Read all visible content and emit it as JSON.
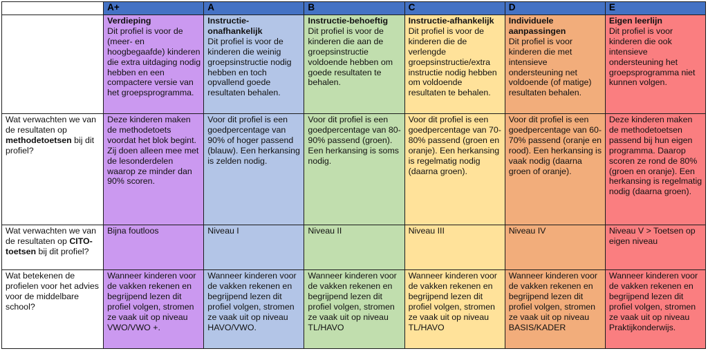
{
  "header": {
    "color": "#4472C4",
    "corner": ""
  },
  "row_labels": {
    "methodetoetsen": {
      "pre": "Wat verwachten we van de resultaten op ",
      "bold": "methodetoetsen",
      "post": " bij dit profiel?"
    },
    "cito": {
      "pre": "Wat verwachten we van de resultaten op ",
      "bold": "CITO-toetsen",
      "post": " bij dit profiel?"
    },
    "advies": {
      "pre": "Wat betekenen de profielen voor het advies voor de middelbare school?",
      "bold": "",
      "post": ""
    }
  },
  "columns": [
    {
      "label": "A+",
      "color": "#CB99F0",
      "profile_title": "Verdieping",
      "profile_text": "Dit profiel is voor de (meer- en hoogbegaafde) kinderen die extra uitdaging nodig hebben en een compactere versie van het groepsprogramma.",
      "methodetoetsen": "Deze kinderen maken de methodetoets voordat het blok begint. Zij doen alleen mee met de lesonderdelen waarop ze minder dan 90% scoren.",
      "cito": "Bijna foutloos",
      "advies": "Wanneer kinderen voor de vakken rekenen en begrijpend lezen dit profiel volgen, stromen ze vaak uit op niveau VWO/VWO +."
    },
    {
      "label": "A",
      "color": "#B3C5E7",
      "profile_title": "Instructie-onafhankelijk",
      "profile_text": "Dit profiel is voor de kinderen die weinig groepsinstructie nodig hebben en toch opvallend goede resultaten behalen.",
      "methodetoetsen": "Voor dit profiel is een goedpercentage van 90% of hoger passend (blauw). Een herkansing is zelden nodig.",
      "cito": "Niveau I",
      "advies": "Wanneer kinderen voor de vakken rekenen en begrijpend lezen dit profiel volgen, stromen ze vaak uit op niveau HAVO/VWO."
    },
    {
      "label": "B",
      "color": "#C1DEAE",
      "profile_title": "Instructie-behoeftig",
      "profile_text": "Dit profiel is voor de kinderen die aan de groepsinstructie voldoende hebben om goede resultaten te behalen.",
      "methodetoetsen": "Voor dit profiel is een goedpercentage van 80-90% passend (groen). Een herkansing is soms nodig.",
      "cito": "Niveau II",
      "advies": "Wanneer kinderen voor de vakken rekenen en begrijpend lezen dit profiel volgen, stromen ze vaak uit op niveau TL/HAVO"
    },
    {
      "label": "C",
      "color": "#FFE29A",
      "profile_title": "Instructie-afhankelijk",
      "profile_text": "Dit profiel is voor de kinderen die de verlengde groepsinstructie/extra instructie nodig hebben om voldoende resultaten te behalen.",
      "methodetoetsen": "Voor dit profiel is een goedpercentage van 70-80% passend (groen en oranje). Een herkansing is regelmatig nodig (daarna groen).",
      "cito": "Niveau III",
      "advies": "Wanneer kinderen voor de vakken rekenen en begrijpend lezen dit profiel volgen, stromen ze vaak uit op niveau TL/HAVO"
    },
    {
      "label": "D",
      "color": "#F2AD7B",
      "profile_title": "Individuele aanpassingen",
      "profile_text": "Dit profiel is voor kinderen die met intensieve ondersteuning net voldoende (of matige) resultaten behalen.",
      "methodetoetsen": "Voor dit profiel is een goedpercentage van 60-70% passend (oranje en rood). Een herkansing is vaak nodig (daarna groen of oranje).",
      "cito": "Niveau IV",
      "advies": "Wanneer kinderen voor de vakken rekenen en begrijpend lezen dit profiel volgen, stromen ze vaak uit op niveau BASIS/KADER"
    },
    {
      "label": "E",
      "color": "#FA7E80",
      "profile_title": "Eigen leerlijn",
      "profile_text": "Dit profiel is voor kinderen die ook intensieve ondersteuning het groepsprogramma niet kunnen volgen.",
      "methodetoetsen": "Deze kinderen maken de methodetoetsen passend bij hun eigen programma. Daarop scoren ze rond de 80% (groen en oranje). Een herkansing is regelmatig nodig (daarna groen).",
      "cito": "Niveau V > Toetsen op eigen niveau",
      "advies": "Wanneer kinderen voor de vakken rekenen en begrijpend lezen dit profiel volgen, stromen ze vaak uit op niveau Praktijkonderwijs."
    }
  ]
}
